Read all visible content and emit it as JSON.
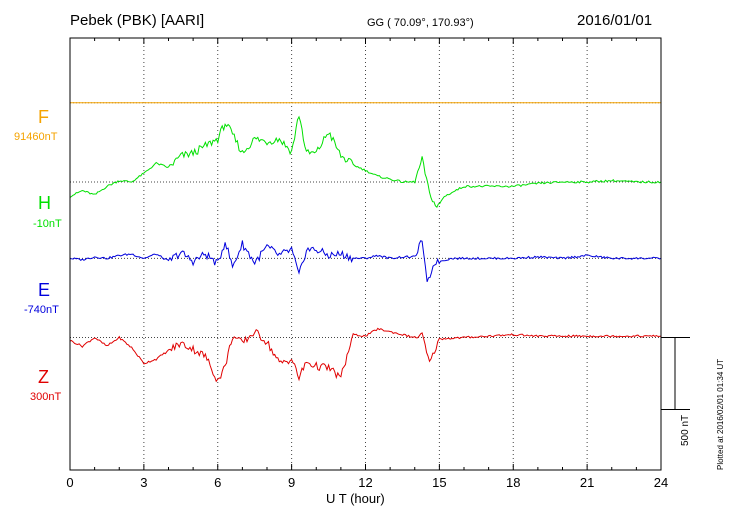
{
  "header": {
    "station": "Pebek (PBK)  [AARI]",
    "coords": "GG ( 70.09°, 170.93°)",
    "date": "2016/01/01"
  },
  "footer": {
    "plotted": "Plotted at 2016/02/01 01:34  UT"
  },
  "colors": {
    "F": "#f5a300",
    "H": "#00e000",
    "E": "#0000dd",
    "Z": "#e00000",
    "grid": "#444444"
  },
  "chart_data": {
    "type": "line",
    "title": "Pebek (PBK)  [AARI]",
    "xlabel": "U T (hour)",
    "xlim": [
      0,
      24
    ],
    "x_ticks": [
      "0",
      "3",
      "6",
      "9",
      "12",
      "15",
      "18",
      "21",
      "24"
    ],
    "scale_bar": "500 nT",
    "ylim": [
      -1250,
      1750
    ],
    "series": [
      {
        "name": "F",
        "baseline_label": "91460nT",
        "offset": 1300,
        "x": [
          0,
          24
        ],
        "y": [
          0,
          0
        ]
      },
      {
        "name": "H",
        "baseline_label": "-10nT",
        "offset": 750,
        "x": [
          0,
          0.5,
          1,
          1.5,
          2,
          2.5,
          3,
          3.5,
          4,
          4.5,
          5,
          5.5,
          6,
          6.3,
          6.6,
          7,
          7.5,
          8,
          8.5,
          9,
          9.3,
          9.6,
          10,
          10.5,
          11,
          11.5,
          12,
          12.5,
          13,
          13.5,
          14,
          14.3,
          14.6,
          14.9,
          15.2,
          16,
          17,
          18,
          19,
          20,
          21,
          22,
          23,
          24
        ],
        "y": [
          -100,
          -60,
          -90,
          -30,
          10,
          0,
          60,
          130,
          100,
          180,
          200,
          250,
          300,
          410,
          330,
          200,
          300,
          280,
          300,
          210,
          470,
          200,
          200,
          350,
          180,
          120,
          80,
          40,
          20,
          0,
          0,
          160,
          -80,
          -180,
          -100,
          -30,
          -30,
          -30,
          -10,
          0,
          0,
          10,
          0,
          0
        ]
      },
      {
        "name": "E",
        "baseline_label": "-740nT",
        "offset": 220,
        "x": [
          0,
          0.5,
          1,
          1.5,
          2,
          2.5,
          3,
          3.5,
          4,
          4.5,
          5,
          5.5,
          6,
          6.3,
          6.6,
          7,
          7.5,
          8,
          8.5,
          9,
          9.3,
          9.6,
          10,
          10.5,
          11,
          11.5,
          12,
          12.5,
          13,
          13.5,
          14,
          14.3,
          14.5,
          14.8,
          15.5,
          17,
          18,
          19,
          20,
          21,
          22,
          23,
          24
        ],
        "y": [
          0,
          -10,
          10,
          0,
          20,
          30,
          0,
          30,
          -20,
          40,
          -20,
          30,
          -40,
          120,
          -60,
          100,
          -30,
          80,
          20,
          60,
          -120,
          60,
          60,
          20,
          30,
          0,
          0,
          20,
          0,
          10,
          10,
          130,
          -180,
          -30,
          0,
          0,
          0,
          10,
          0,
          20,
          0,
          0,
          0
        ]
      },
      {
        "name": "Z",
        "baseline_label": "300nT",
        "offset": -330,
        "x": [
          0,
          0.5,
          1,
          1.5,
          2,
          2.5,
          3,
          3.5,
          4,
          4.5,
          5,
          5.5,
          6,
          6.3,
          6.6,
          7,
          7.5,
          8,
          8.5,
          9,
          9.3,
          9.6,
          10,
          10.5,
          11,
          11.5,
          12,
          12.5,
          13,
          13.5,
          14,
          14.3,
          14.6,
          15,
          16,
          17,
          18,
          19,
          20,
          21,
          22,
          23,
          24
        ],
        "y": [
          -20,
          -60,
          0,
          -60,
          0,
          -70,
          -180,
          -150,
          -90,
          -40,
          -80,
          -130,
          -300,
          -200,
          10,
          -40,
          40,
          -30,
          -180,
          -150,
          -280,
          -170,
          -200,
          -210,
          -280,
          20,
          10,
          60,
          40,
          20,
          0,
          20,
          -180,
          -10,
          0,
          10,
          20,
          10,
          10,
          10,
          10,
          10,
          10
        ]
      }
    ]
  }
}
